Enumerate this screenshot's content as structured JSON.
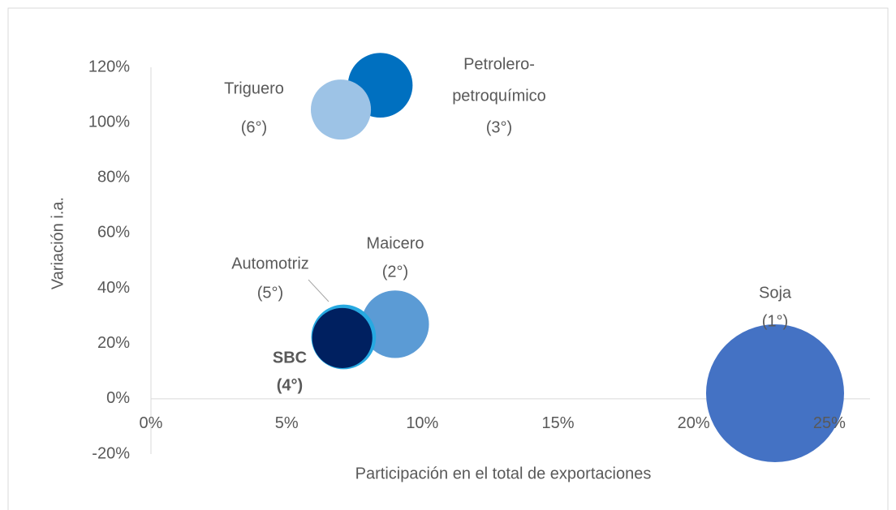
{
  "chart_data": {
    "type": "bubble",
    "xlabel": "Participación en el total de exportaciones",
    "ylabel": "Variación i.a.",
    "xlim": [
      0,
      26.5
    ],
    "ylim": [
      -20,
      120
    ],
    "xticks": [
      {
        "value": 0,
        "label": "0%"
      },
      {
        "value": 5,
        "label": "5%"
      },
      {
        "value": 10,
        "label": "10%"
      },
      {
        "value": 15,
        "label": "15%"
      },
      {
        "value": 20,
        "label": "20%"
      },
      {
        "value": 25,
        "label": "25%"
      }
    ],
    "yticks": [
      {
        "value": -20,
        "label": "-20%"
      },
      {
        "value": 0,
        "label": "0%"
      },
      {
        "value": 20,
        "label": "20%"
      },
      {
        "value": 40,
        "label": "40%"
      },
      {
        "value": 60,
        "label": "60%"
      },
      {
        "value": 80,
        "label": "80%"
      },
      {
        "value": 100,
        "label": "100%"
      },
      {
        "value": 120,
        "label": "120%"
      }
    ],
    "grid": false,
    "series": [
      {
        "label_lines": [
          "Soja",
          "(1°)"
        ],
        "color": "#4472c4",
        "x": 23,
        "y": 2,
        "size": 100
      },
      {
        "label_lines": [
          "Maicero",
          "(2°)"
        ],
        "color": "#5b9bd5",
        "x": 9,
        "y": 27,
        "size": 24
      },
      {
        "label_lines": [
          "Petrolero-",
          "petroquímico",
          "(3°)"
        ],
        "color": "#0070c0",
        "x": 8.45,
        "y": 113.5,
        "size": 22
      },
      {
        "label_lines": [
          "Triguero",
          "(6°)"
        ],
        "color": "#9dc3e6",
        "x": 7,
        "y": 104.7,
        "size": 19
      },
      {
        "label_lines": [
          "Automotriz",
          "(5°)"
        ],
        "color": "#27a9e1",
        "x": 7.1,
        "y": 22.4,
        "size": 22
      },
      {
        "label_lines": [
          "SBC",
          "(4°)"
        ],
        "color": "#002060",
        "x": 7.05,
        "y": 22,
        "size": 19
      }
    ]
  }
}
